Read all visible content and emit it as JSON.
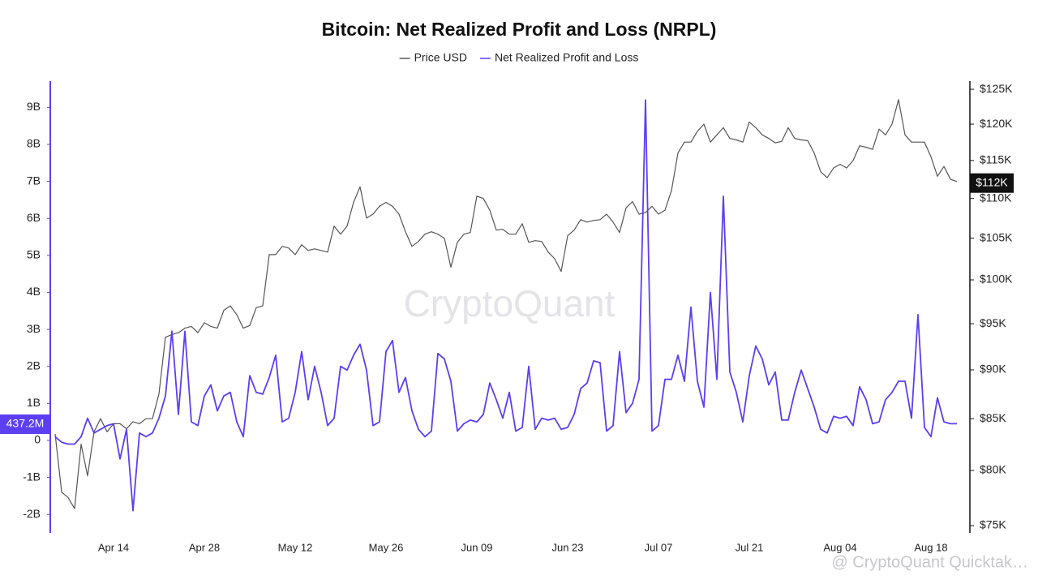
{
  "chart_data": {
    "type": "line",
    "title": "Bitcoin: Net Realized Profit and Loss (NRPL)",
    "watermark": "CryptoQuant",
    "footer": "@ CryptoQuant Quicktak…",
    "categories": [
      null,
      null,
      null,
      null,
      null,
      null,
      null,
      null,
      null,
      "Apr 14",
      null,
      null,
      null,
      null,
      null,
      null,
      null,
      null,
      null,
      null,
      null,
      null,
      null,
      "Apr 28",
      null,
      null,
      null,
      null,
      null,
      null,
      null,
      null,
      null,
      null,
      null,
      null,
      null,
      "May 12",
      null,
      null,
      null,
      null,
      null,
      null,
      null,
      null,
      null,
      null,
      null,
      null,
      null,
      "May 26",
      null,
      null,
      null,
      null,
      null,
      null,
      null,
      null,
      null,
      null,
      null,
      null,
      null,
      "Jun 09",
      null,
      null,
      null,
      null,
      null,
      null,
      null,
      null,
      null,
      null,
      null,
      null,
      null,
      "Jun 23",
      null,
      null,
      null,
      null,
      null,
      null,
      null,
      null,
      null,
      null,
      null,
      null,
      null,
      "Jul 07",
      null,
      null,
      null,
      null,
      null,
      null,
      null,
      null,
      null,
      null,
      null,
      null,
      null,
      "Jul 21",
      null,
      null,
      null,
      null,
      null,
      null,
      null,
      null,
      null,
      null,
      null,
      null,
      null,
      "Aug 04",
      null,
      null,
      null,
      null,
      null,
      null,
      null,
      null,
      null,
      null,
      null,
      null,
      null,
      "Aug 18",
      null,
      null,
      null,
      null
    ],
    "series": [
      {
        "name": "Price USD",
        "color": "#555555",
        "axis": "y2",
        "values": [
          83.5,
          78,
          77.5,
          76.5,
          82.5,
          79.5,
          83.7,
          85,
          83.7,
          84.5,
          84.5,
          84,
          84.7,
          84.5,
          85,
          85,
          87.5,
          93.5,
          93.8,
          94,
          94.5,
          94.7,
          94,
          95.1,
          94.7,
          94.5,
          96.5,
          97,
          96,
          94.5,
          94.8,
          96.8,
          97,
          103,
          103,
          104,
          103.8,
          103,
          104.2,
          103.5,
          103.7,
          103.5,
          103.3,
          106.5,
          105.5,
          106.5,
          109.5,
          111.5,
          107.5,
          108,
          109,
          109.5,
          109,
          108,
          105.8,
          104,
          104.6,
          105.5,
          105.8,
          105.5,
          105,
          101.5,
          104.5,
          105.5,
          105.7,
          110.3,
          110,
          108.5,
          106,
          106.1,
          105.5,
          105.5,
          106.8,
          104.5,
          104.7,
          104.6,
          103.3,
          102.5,
          101,
          105.3,
          106,
          107.3,
          107,
          107.2,
          107.3,
          108,
          107,
          105.7,
          108.8,
          109.6,
          108,
          108.2,
          109,
          108,
          108.5,
          111,
          116,
          117.5,
          117.5,
          119,
          120,
          117.5,
          118.5,
          119.5,
          118,
          117.8,
          117.5,
          120.3,
          119.5,
          118.5,
          118,
          117.4,
          117.6,
          119.5,
          118,
          117.8,
          117.7,
          116,
          113.5,
          112.7,
          114,
          114.5,
          114,
          115,
          117,
          116.8,
          116.5,
          119.3,
          118.5,
          120,
          123.5,
          118.5,
          117.5,
          117.5,
          117.5,
          115.5,
          112.9,
          114.2,
          112.5,
          112.2
        ]
      },
      {
        "name": "Net Realized Profit and Loss",
        "color": "#5b3ff0",
        "values": [
          0.1,
          -0.05,
          -0.1,
          -0.1,
          0.1,
          0.6,
          0.2,
          0.3,
          0.4,
          0.45,
          -0.5,
          0.3,
          -1.9,
          0.2,
          0.1,
          0.2,
          0.6,
          1.2,
          2.95,
          0.7,
          2.95,
          0.5,
          0.4,
          1.2,
          1.5,
          0.8,
          1.2,
          1.3,
          0.5,
          0.1,
          1.75,
          1.3,
          1.25,
          1.7,
          2.3,
          0.5,
          0.6,
          1.3,
          2.4,
          1.1,
          2.0,
          1.3,
          0.4,
          0.6,
          2.0,
          1.9,
          2.3,
          2.6,
          1.9,
          0.4,
          0.5,
          2.4,
          2.7,
          1.3,
          1.7,
          0.8,
          0.3,
          0.1,
          0.25,
          2.35,
          2.2,
          1.6,
          0.25,
          0.45,
          0.55,
          0.5,
          0.7,
          1.55,
          1.1,
          0.6,
          1.3,
          0.25,
          0.35,
          2.0,
          0.3,
          0.6,
          0.55,
          0.6,
          0.3,
          0.35,
          0.7,
          1.4,
          1.55,
          2.15,
          2.1,
          0.25,
          0.4,
          2.4,
          0.75,
          1.0,
          1.65,
          9.2,
          0.25,
          0.4,
          1.65,
          1.65,
          2.3,
          1.6,
          3.6,
          1.6,
          0.9,
          4.0,
          1.65,
          6.6,
          1.85,
          1.3,
          0.5,
          1.75,
          2.55,
          2.2,
          1.5,
          1.85,
          0.55,
          0.55,
          1.3,
          1.9,
          1.4,
          0.9,
          0.3,
          0.2,
          0.65,
          0.6,
          0.65,
          0.4,
          1.45,
          1.1,
          0.45,
          0.5,
          1.1,
          1.3,
          1.6,
          1.6,
          0.6,
          3.4,
          0.35,
          0.1,
          1.15,
          0.5,
          0.45,
          0.45
        ]
      }
    ],
    "ylim": [
      -2.5,
      9.71
    ],
    "yticks": [
      {
        "value": -2,
        "label": "-2B"
      },
      {
        "value": -1,
        "label": "-1B"
      },
      0,
      {
        "value": 1,
        "label": "1B"
      },
      {
        "value": 2,
        "label": "2B"
      },
      {
        "value": 3,
        "label": "3B"
      },
      {
        "value": 4,
        "label": "4B"
      },
      {
        "value": 5,
        "label": "5B"
      },
      {
        "value": 6,
        "label": "6B"
      },
      {
        "value": 7,
        "label": "7B"
      },
      {
        "value": 8,
        "label": "8B"
      },
      {
        "value": 9,
        "label": "9B"
      }
    ],
    "y2lim": [
      74.36,
      126.2
    ],
    "y2log": true,
    "y2ticks": [
      {
        "value": 75,
        "label": "$75K"
      },
      {
        "value": 80,
        "label": "$80K"
      },
      {
        "value": 85,
        "label": "$85K"
      },
      {
        "value": 90,
        "label": "$90K"
      },
      {
        "value": 95,
        "label": "$95K"
      },
      {
        "value": 100,
        "label": "$100K"
      },
      {
        "value": 105,
        "label": "$105K"
      },
      {
        "value": 110,
        "label": "$110K"
      },
      {
        "value": 115,
        "label": "$115K"
      },
      {
        "value": 120,
        "label": "$120K"
      },
      {
        "value": 125,
        "label": "$125K"
      }
    ],
    "y_marker": {
      "value": 0.4372,
      "label": "437.2M"
    },
    "y2_marker": {
      "value": 112,
      "label": "$112K"
    }
  }
}
